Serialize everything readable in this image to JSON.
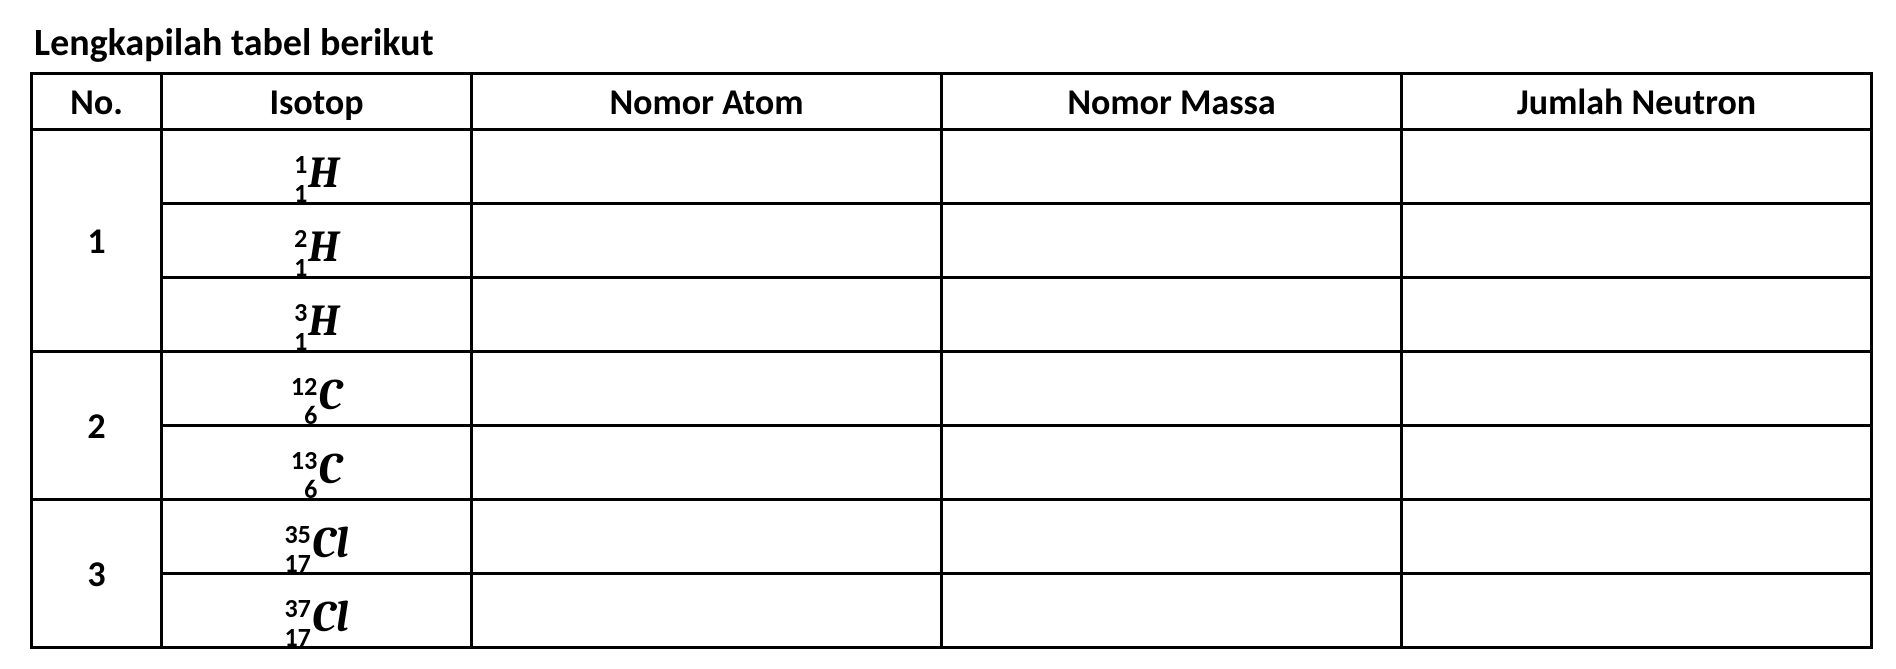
{
  "title": "Lengkapilah tabel berikut",
  "headers": {
    "no": "No.",
    "isotope": "Isotop",
    "atomic_number": "Nomor Atom",
    "mass_number": "Nomor Massa",
    "neutron_count": "Jumlah Neutron"
  },
  "groups": [
    {
      "no": "1",
      "rows": [
        {
          "mass": "1",
          "atomic": "1",
          "symbol": "H",
          "atomic_number": "",
          "mass_number": "",
          "neutrons": ""
        },
        {
          "mass": "2",
          "atomic": "1",
          "symbol": "H",
          "atomic_number": "",
          "mass_number": "",
          "neutrons": ""
        },
        {
          "mass": "3",
          "atomic": "1",
          "symbol": "H",
          "atomic_number": "",
          "mass_number": "",
          "neutrons": ""
        }
      ]
    },
    {
      "no": "2",
      "rows": [
        {
          "mass": "12",
          "atomic": "6",
          "symbol": "C",
          "atomic_number": "",
          "mass_number": "",
          "neutrons": ""
        },
        {
          "mass": "13",
          "atomic": "6",
          "symbol": "C",
          "atomic_number": "",
          "mass_number": "",
          "neutrons": ""
        }
      ]
    },
    {
      "no": "3",
      "rows": [
        {
          "mass": "35",
          "atomic": "17",
          "symbol": "Cl",
          "atomic_number": "",
          "mass_number": "",
          "neutrons": ""
        },
        {
          "mass": "37",
          "atomic": "17",
          "symbol": "Cl",
          "atomic_number": "",
          "mass_number": "",
          "neutrons": ""
        }
      ]
    }
  ],
  "style": {
    "border_color": "#000000",
    "background": "#ffffff",
    "title_fontsize": 38,
    "header_fontsize": 36,
    "symbol_fontsize": 44,
    "script_fontsize": 26
  }
}
